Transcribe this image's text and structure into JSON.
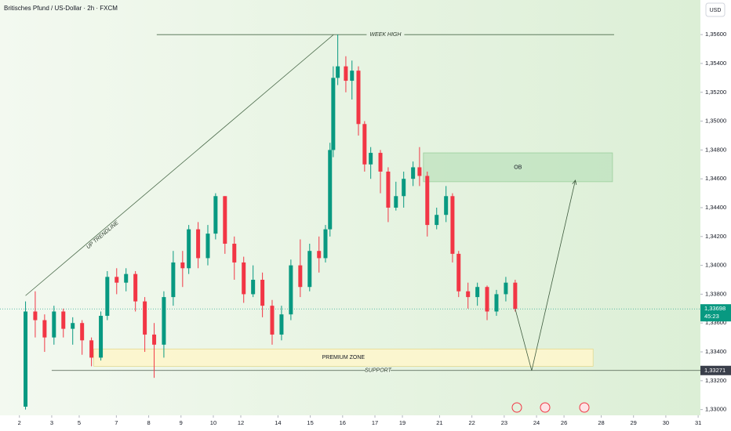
{
  "chart_data": {
    "type": "candlestick",
    "title": "Britisches Pfund / US-Dollar · 2h · FXCM",
    "currency": "USD",
    "colors": {
      "up": "#089981",
      "down": "#f23645"
    },
    "x": [
      0.19,
      0.49,
      0.78,
      1.07,
      1.36,
      1.65,
      1.94,
      2.23,
      2.52,
      2.72,
      3.01,
      3.3,
      3.59,
      3.88,
      4.17,
      4.47,
      4.76,
      5.05,
      5.24,
      5.53,
      5.83,
      6.07,
      6.36,
      6.65,
      6.94,
      7.23,
      7.52,
      7.82,
      8.11,
      8.4,
      8.69,
      8.98,
      9.27,
      9.47,
      9.61,
      9.71,
      9.85,
      10.1,
      10.29,
      10.49,
      10.68,
      10.87,
      11.17,
      11.41,
      11.65,
      11.89,
      12.18,
      12.38,
      12.62,
      12.91,
      13.2,
      13.4,
      13.59,
      13.88,
      14.17,
      14.47,
      14.76,
      15.05,
      15.34
    ],
    "open": [
      1.3302,
      1.3368,
      1.3362,
      1.335,
      1.3368,
      1.3356,
      1.336,
      1.3348,
      1.3336,
      1.3365,
      1.3392,
      1.3388,
      1.3394,
      1.3375,
      1.3352,
      1.3345,
      1.3378,
      1.3402,
      1.3398,
      1.3425,
      1.3405,
      1.3422,
      1.3448,
      1.3415,
      1.3402,
      1.338,
      1.339,
      1.3372,
      1.3352,
      1.3366,
      1.34,
      1.3385,
      1.341,
      1.3405,
      1.3425,
      1.348,
      1.353,
      1.3538,
      1.3528,
      1.3535,
      1.3498,
      1.347,
      1.3478,
      1.3465,
      1.344,
      1.3448,
      1.346,
      1.3468,
      1.3462,
      1.3428,
      1.3435,
      1.3448,
      1.3408,
      1.3382,
      1.3378,
      1.3385,
      1.3368,
      1.338,
      1.3388
    ],
    "high": [
      1.3375,
      1.3382,
      1.3366,
      1.3372,
      1.337,
      1.3364,
      1.3362,
      1.335,
      1.3368,
      1.3396,
      1.3398,
      1.3398,
      1.3396,
      1.3378,
      1.336,
      1.3382,
      1.341,
      1.341,
      1.3428,
      1.343,
      1.3428,
      1.345,
      1.3448,
      1.342,
      1.3406,
      1.34,
      1.3395,
      1.3376,
      1.3372,
      1.3404,
      1.3418,
      1.3415,
      1.342,
      1.3428,
      1.3485,
      1.3538,
      1.356,
      1.3545,
      1.3542,
      1.3538,
      1.35,
      1.3482,
      1.348,
      1.3468,
      1.3458,
      1.3465,
      1.3472,
      1.3482,
      1.3465,
      1.344,
      1.3455,
      1.345,
      1.341,
      1.3388,
      1.3388,
      1.3386,
      1.3383,
      1.3392,
      1.339
    ],
    "low": [
      1.33,
      1.335,
      1.334,
      1.3345,
      1.335,
      1.3345,
      1.3338,
      1.333,
      1.3334,
      1.3362,
      1.338,
      1.3382,
      1.3368,
      1.334,
      1.3322,
      1.3336,
      1.3372,
      1.3385,
      1.3394,
      1.3398,
      1.34,
      1.3418,
      1.3408,
      1.339,
      1.3374,
      1.3378,
      1.3364,
      1.3345,
      1.3348,
      1.3362,
      1.3378,
      1.3382,
      1.3395,
      1.3402,
      1.342,
      1.3475,
      1.3525,
      1.352,
      1.3515,
      1.349,
      1.3465,
      1.346,
      1.345,
      1.343,
      1.3438,
      1.344,
      1.3455,
      1.3455,
      1.342,
      1.3425,
      1.343,
      1.3402,
      1.3378,
      1.337,
      1.3372,
      1.3362,
      1.3365,
      1.3375,
      1.3368
    ],
    "close": [
      1.3368,
      1.3362,
      1.335,
      1.3368,
      1.3356,
      1.336,
      1.3348,
      1.3336,
      1.3365,
      1.3392,
      1.3388,
      1.3394,
      1.3375,
      1.3352,
      1.3345,
      1.3378,
      1.3402,
      1.3398,
      1.3425,
      1.3405,
      1.3422,
      1.3448,
      1.3415,
      1.3402,
      1.338,
      1.339,
      1.3372,
      1.3352,
      1.3366,
      1.34,
      1.3385,
      1.341,
      1.3405,
      1.3425,
      1.348,
      1.353,
      1.3538,
      1.3528,
      1.3535,
      1.3498,
      1.347,
      1.3478,
      1.3465,
      1.344,
      1.3448,
      1.346,
      1.3468,
      1.3462,
      1.3428,
      1.3435,
      1.3448,
      1.3408,
      1.3382,
      1.3378,
      1.3385,
      1.3368,
      1.338,
      1.3388,
      1.33698
    ],
    "xlim": [
      -0.6,
      21.07
    ],
    "xticks": [
      {
        "value": 0,
        "label": "2"
      },
      {
        "value": 1,
        "label": "3"
      },
      {
        "value": 1.85,
        "label": "5"
      },
      {
        "value": 3,
        "label": "7"
      },
      {
        "value": 4,
        "label": "8"
      },
      {
        "value": 5,
        "label": "9"
      },
      {
        "value": 6,
        "label": "10"
      },
      {
        "value": 6.85,
        "label": "12"
      },
      {
        "value": 8,
        "label": "14"
      },
      {
        "value": 9,
        "label": "15"
      },
      {
        "value": 10,
        "label": "16"
      },
      {
        "value": 11,
        "label": "17"
      },
      {
        "value": 11.85,
        "label": "19"
      },
      {
        "value": 13,
        "label": "21"
      },
      {
        "value": 14,
        "label": "22"
      },
      {
        "value": 15,
        "label": "23"
      },
      {
        "value": 16,
        "label": "24"
      },
      {
        "value": 16.85,
        "label": "26"
      },
      {
        "value": 18,
        "label": "28"
      },
      {
        "value": 19,
        "label": "29"
      },
      {
        "value": 20,
        "label": "30"
      },
      {
        "value": 21,
        "label": "31"
      }
    ],
    "ylim": [
      1.3296,
      1.3584
    ],
    "yticks": [
      {
        "value": 1.356,
        "label": "1,35600"
      },
      {
        "value": 1.354,
        "label": "1,35400"
      },
      {
        "value": 1.352,
        "label": "1,35200"
      },
      {
        "value": 1.35,
        "label": "1,35000"
      },
      {
        "value": 1.348,
        "label": "1,34800"
      },
      {
        "value": 1.346,
        "label": "1,34600"
      },
      {
        "value": 1.344,
        "label": "1,34400"
      },
      {
        "value": 1.342,
        "label": "1,34200"
      },
      {
        "value": 1.34,
        "label": "1,34000"
      },
      {
        "value": 1.338,
        "label": "1,33800"
      },
      {
        "value": 1.336,
        "label": "1,33600"
      },
      {
        "value": 1.334,
        "label": "1,33400"
      },
      {
        "value": 1.332,
        "label": "1,33200"
      },
      {
        "value": 1.33,
        "label": "1,33000"
      }
    ],
    "week_high": {
      "label": "WEEK HIGH",
      "value": 1.356,
      "x": [
        4.25,
        18.4
      ]
    },
    "trendline": {
      "label": "UP TRENDLINE",
      "x": [
        0.19,
        9.72
      ],
      "y": [
        1.3379,
        1.356
      ]
    },
    "ob_zone": {
      "label": "OB",
      "x": [
        12.5,
        18.35
      ],
      "y": [
        1.3478,
        1.3458
      ]
    },
    "premium_zone": {
      "label": "PREMIUM ZONE",
      "x": [
        2.3,
        17.75
      ],
      "y": [
        1.3342,
        1.333
      ]
    },
    "support": {
      "label": "SUPPORT",
      "value": 1.33271,
      "value_label": "1,33271",
      "x": [
        1.0,
        21.07
      ]
    },
    "projection": {
      "x": [
        15.34,
        15.85,
        17.2
      ],
      "y": [
        1.33698,
        1.3327,
        1.3459
      ]
    },
    "last_price": {
      "value": 1.33698,
      "label": "1,33698",
      "countdown": "45:23"
    }
  }
}
